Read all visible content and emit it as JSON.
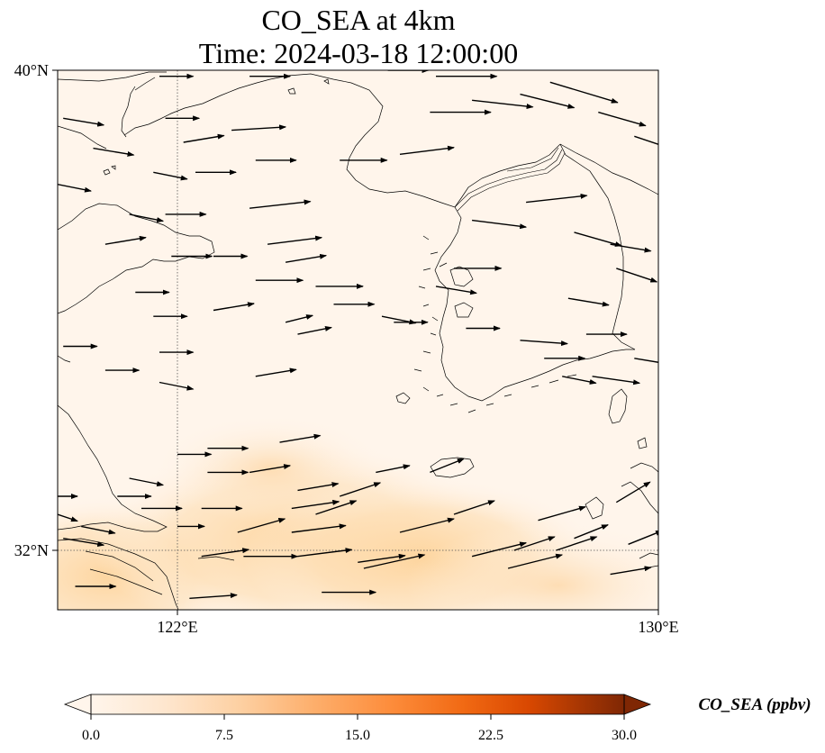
{
  "title": {
    "line1": "CO_SEA at 4km",
    "line2": "Time: 2024-03-18 12:00:00"
  },
  "axes": {
    "lat_labels": [
      {
        "value": 40,
        "label": "40°N"
      },
      {
        "value": 32,
        "label": "32°N"
      }
    ],
    "lon_labels": [
      {
        "value": 122,
        "label": "122°E"
      },
      {
        "value": 130,
        "label": "130°E"
      }
    ],
    "extent": {
      "lon_min": 120,
      "lon_max": 130,
      "lat_min": 31,
      "lat_max": 40
    }
  },
  "colorbar": {
    "label": "CO_SEA (ppbv)",
    "ticks": [
      "0.0",
      "7.5",
      "15.0",
      "22.5",
      "30.0"
    ],
    "range": [
      0,
      30
    ],
    "colors": [
      "#fff5eb",
      "#fee6ce",
      "#fdd0a2",
      "#fdae6b",
      "#fd8d3c",
      "#f16913",
      "#d94801",
      "#a63603",
      "#7f2704"
    ],
    "extend": "both"
  },
  "colors": {
    "background_field": "#fff5eb",
    "plume": "#fdd7a6",
    "coastline": "#000000",
    "gridline": "#555555",
    "arrow": "#000000"
  },
  "chart_data": {
    "type": "map",
    "variable": "CO_SEA",
    "level": "4km",
    "time": "2024-03-18 12:00:00",
    "units": "ppbv",
    "wind_vectors_lonlat": [
      [
        120.1,
        39.2,
        0.6,
        -0.1
      ],
      [
        120.6,
        38.7,
        0.6,
        -0.1
      ],
      [
        121.6,
        38.3,
        0.5,
        -0.1
      ],
      [
        121.8,
        39.2,
        0.5,
        0.0
      ],
      [
        122.1,
        38.8,
        0.6,
        0.1
      ],
      [
        121.2,
        37.6,
        0.5,
        -0.1
      ],
      [
        121.8,
        37.6,
        0.6,
        0.0
      ],
      [
        122.3,
        38.3,
        0.6,
        0.0
      ],
      [
        122.9,
        39.0,
        0.8,
        0.05
      ],
      [
        123.3,
        38.5,
        0.6,
        0.0
      ],
      [
        123.2,
        37.7,
        0.9,
        0.1
      ],
      [
        123.5,
        37.1,
        0.8,
        0.1
      ],
      [
        124.7,
        38.5,
        0.7,
        0.0
      ],
      [
        125.7,
        38.6,
        0.8,
        0.1
      ],
      [
        126.2,
        39.3,
        0.9,
        0.0
      ],
      [
        126.9,
        39.5,
        0.9,
        -0.1
      ],
      [
        127.7,
        39.6,
        0.8,
        -0.2
      ],
      [
        128.2,
        39.8,
        1.0,
        -0.3
      ],
      [
        129.0,
        39.3,
        0.7,
        -0.2
      ],
      [
        129.6,
        38.9,
        0.6,
        -0.2
      ],
      [
        126.3,
        39.9,
        0.9,
        0.0
      ],
      [
        125.5,
        40.0,
        0.6,
        0.0
      ],
      [
        123.2,
        39.9,
        0.6,
        0.0
      ],
      [
        121.7,
        39.9,
        0.5,
        0.0
      ],
      [
        120.0,
        38.1,
        0.5,
        -0.1
      ],
      [
        120.8,
        37.1,
        0.6,
        0.1
      ],
      [
        121.9,
        36.9,
        0.6,
        0.0
      ],
      [
        122.6,
        36.9,
        0.5,
        0.0
      ],
      [
        123.3,
        36.5,
        0.7,
        0.0
      ],
      [
        122.6,
        36.0,
        0.6,
        0.1
      ],
      [
        121.3,
        36.3,
        0.5,
        0.0
      ],
      [
        121.6,
        35.9,
        0.5,
        0.0
      ],
      [
        120.1,
        35.4,
        0.5,
        0.0
      ],
      [
        120.8,
        35.0,
        0.5,
        0.0
      ],
      [
        121.7,
        35.3,
        0.5,
        0.0
      ],
      [
        121.7,
        34.8,
        0.5,
        -0.1
      ],
      [
        123.8,
        36.8,
        0.6,
        0.1
      ],
      [
        123.8,
        35.8,
        0.4,
        0.1
      ],
      [
        123.3,
        34.9,
        0.6,
        0.1
      ],
      [
        124.0,
        35.6,
        0.5,
        0.1
      ],
      [
        124.3,
        36.4,
        0.7,
        0.0
      ],
      [
        124.6,
        36.1,
        0.6,
        0.0
      ],
      [
        125.4,
        35.9,
        0.5,
        -0.1
      ],
      [
        125.6,
        35.8,
        0.5,
        0.0
      ],
      [
        126.3,
        36.4,
        0.6,
        -0.1
      ],
      [
        126.9,
        37.5,
        0.8,
        -0.1
      ],
      [
        127.8,
        37.8,
        0.9,
        0.1
      ],
      [
        128.6,
        37.3,
        0.7,
        -0.2
      ],
      [
        129.2,
        37.1,
        0.6,
        -0.1
      ],
      [
        129.3,
        36.7,
        0.6,
        -0.2
      ],
      [
        128.5,
        36.2,
        0.6,
        -0.1
      ],
      [
        128.8,
        35.6,
        0.6,
        0.0
      ],
      [
        128.1,
        35.2,
        0.6,
        0.0
      ],
      [
        128.9,
        34.9,
        0.7,
        -0.1
      ],
      [
        129.6,
        35.2,
        0.6,
        -0.1
      ],
      [
        128.4,
        34.9,
        0.5,
        -0.1
      ],
      [
        127.7,
        35.5,
        0.7,
        -0.05
      ],
      [
        126.8,
        35.7,
        0.5,
        0.0
      ],
      [
        126.6,
        36.7,
        0.7,
        0.0
      ],
      [
        126.2,
        33.3,
        0.5,
        0.2
      ],
      [
        125.3,
        33.3,
        0.5,
        0.1
      ],
      [
        124.7,
        32.9,
        0.6,
        0.2
      ],
      [
        124.3,
        32.6,
        0.6,
        0.2
      ],
      [
        123.9,
        32.3,
        0.8,
        0.1
      ],
      [
        123.0,
        32.3,
        0.7,
        0.2
      ],
      [
        122.0,
        33.6,
        0.5,
        0.0
      ],
      [
        122.5,
        33.3,
        0.6,
        0.0
      ],
      [
        123.2,
        33.3,
        0.6,
        0.1
      ],
      [
        123.9,
        32.7,
        0.7,
        0.1
      ],
      [
        124.0,
        33.0,
        0.6,
        0.1
      ],
      [
        121.2,
        33.2,
        0.5,
        -0.1
      ],
      [
        121.4,
        32.7,
        0.6,
        0.0
      ],
      [
        122.4,
        32.7,
        0.6,
        0.0
      ],
      [
        123.7,
        33.8,
        0.6,
        0.1
      ],
      [
        122.5,
        33.7,
        0.6,
        0.0
      ],
      [
        121.0,
        32.9,
        0.5,
        0.0
      ],
      [
        120.4,
        32.4,
        0.5,
        -0.1
      ],
      [
        120.1,
        32.2,
        0.6,
        -0.1
      ],
      [
        120.0,
        32.9,
        0.3,
        0.0
      ],
      [
        120.0,
        32.6,
        0.3,
        -0.1
      ],
      [
        122.0,
        32.4,
        0.4,
        0.0
      ],
      [
        125.7,
        32.3,
        0.8,
        0.2
      ],
      [
        126.9,
        31.9,
        0.8,
        0.2
      ],
      [
        127.5,
        31.7,
        0.8,
        0.2
      ],
      [
        127.6,
        32.0,
        0.6,
        0.2
      ],
      [
        129.2,
        31.6,
        0.6,
        0.1
      ],
      [
        129.3,
        32.8,
        0.5,
        0.3
      ],
      [
        129.5,
        32.1,
        0.5,
        0.2
      ],
      [
        125.1,
        31.7,
        0.9,
        0.2
      ],
      [
        126.6,
        32.6,
        0.6,
        0.2
      ],
      [
        128.0,
        32.5,
        0.7,
        0.2
      ],
      [
        128.3,
        32.0,
        0.6,
        0.2
      ],
      [
        120.3,
        31.4,
        0.6,
        0.0
      ],
      [
        122.2,
        31.2,
        0.7,
        0.05
      ],
      [
        124.4,
        31.3,
        0.8,
        0.0
      ],
      [
        128.6,
        32.2,
        0.5,
        0.2
      ],
      [
        122.4,
        31.9,
        0.7,
        0.1
      ],
      [
        123.1,
        31.9,
        0.8,
        0.0
      ],
      [
        124.0,
        31.9,
        0.8,
        0.1
      ],
      [
        125.0,
        31.8,
        0.7,
        0.1
      ]
    ]
  }
}
